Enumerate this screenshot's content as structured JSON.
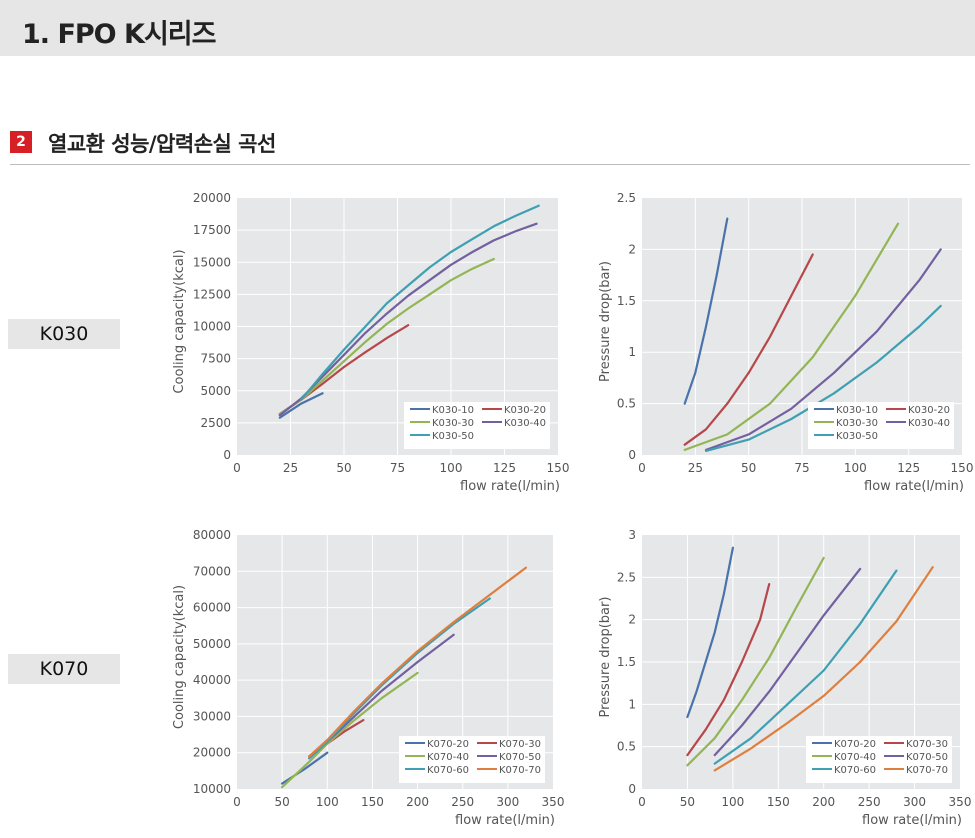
{
  "header": {
    "title": "1. FPO K시리즈"
  },
  "section": {
    "number": "2",
    "title": "열교환 성능/압력손실 곡선"
  },
  "rows": [
    {
      "label": "K030"
    },
    {
      "label": "K070"
    }
  ],
  "colors": {
    "blue": "#4a73ab",
    "red": "#b6474a",
    "green": "#93b555",
    "purple": "#7260a0",
    "teal": "#3f9fb3",
    "orange": "#de7f3f",
    "plot_bg": "#e6e7e8",
    "grid": "#ffffff"
  },
  "chart_data": [
    {
      "id": "k030-cooling",
      "type": "line",
      "ylabel": "Cooling capacity(kcal)",
      "xlabel": "flow rate(l/min)",
      "xlim": [
        0,
        150
      ],
      "ylim": [
        0,
        20000
      ],
      "xticks": [
        0,
        25,
        50,
        75,
        100,
        125,
        150
      ],
      "yticks": [
        0,
        2500,
        5000,
        7500,
        10000,
        12500,
        15000,
        17500,
        20000
      ],
      "grid": true,
      "legend_position": "bottom-right",
      "series": [
        {
          "name": "K030-10",
          "color": "#4a73ab",
          "points": [
            [
              20,
              2900
            ],
            [
              30,
              4000
            ],
            [
              40,
              4800
            ]
          ]
        },
        {
          "name": "K030-20",
          "color": "#b6474a",
          "points": [
            [
              20,
              3200
            ],
            [
              30,
              4300
            ],
            [
              40,
              5550
            ],
            [
              50,
              6850
            ],
            [
              60,
              8000
            ],
            [
              70,
              9100
            ],
            [
              80,
              10100
            ]
          ]
        },
        {
          "name": "K030-30",
          "color": "#93b555",
          "points": [
            [
              20,
              3200
            ],
            [
              30,
              4300
            ],
            [
              40,
              5800
            ],
            [
              50,
              7300
            ],
            [
              60,
              8800
            ],
            [
              70,
              10200
            ],
            [
              80,
              11400
            ],
            [
              90,
              12500
            ],
            [
              100,
              13600
            ],
            [
              110,
              14500
            ],
            [
              120,
              15250
            ]
          ]
        },
        {
          "name": "K030-40",
          "color": "#7260a0",
          "points": [
            [
              20,
              3100
            ],
            [
              30,
              4400
            ],
            [
              40,
              6100
            ],
            [
              50,
              7800
            ],
            [
              60,
              9500
            ],
            [
              70,
              11000
            ],
            [
              80,
              12400
            ],
            [
              90,
              13600
            ],
            [
              100,
              14800
            ],
            [
              110,
              15800
            ],
            [
              120,
              16700
            ],
            [
              130,
              17400
            ],
            [
              140,
              18000
            ]
          ]
        },
        {
          "name": "K030-50",
          "color": "#3f9fb3",
          "points": [
            [
              30,
              4300
            ],
            [
              40,
              6300
            ],
            [
              50,
              8200
            ],
            [
              60,
              10000
            ],
            [
              70,
              11800
            ],
            [
              80,
              13200
            ],
            [
              90,
              14600
            ],
            [
              100,
              15800
            ],
            [
              110,
              16800
            ],
            [
              120,
              17800
            ],
            [
              130,
              18600
            ],
            [
              141,
              19400
            ]
          ]
        }
      ]
    },
    {
      "id": "k030-pressure",
      "type": "line",
      "ylabel": "Pressure drop(bar)",
      "xlabel": "flow rate(l/min)",
      "xlim": [
        0,
        150
      ],
      "ylim": [
        0,
        2.5
      ],
      "xticks": [
        0,
        25,
        50,
        75,
        100,
        125,
        150
      ],
      "yticks": [
        0,
        0.5,
        1,
        1.5,
        2,
        2.5
      ],
      "grid": true,
      "legend_position": "bottom-right",
      "series": [
        {
          "name": "K030-10",
          "color": "#4a73ab",
          "points": [
            [
              20,
              0.5
            ],
            [
              25,
              0.8
            ],
            [
              30,
              1.25
            ],
            [
              35,
              1.75
            ],
            [
              40,
              2.3
            ]
          ]
        },
        {
          "name": "K030-20",
          "color": "#b6474a",
          "points": [
            [
              20,
              0.1
            ],
            [
              30,
              0.25
            ],
            [
              40,
              0.5
            ],
            [
              50,
              0.8
            ],
            [
              60,
              1.15
            ],
            [
              70,
              1.55
            ],
            [
              80,
              1.95
            ]
          ]
        },
        {
          "name": "K030-30",
          "color": "#93b555",
          "points": [
            [
              20,
              0.05
            ],
            [
              40,
              0.2
            ],
            [
              60,
              0.5
            ],
            [
              80,
              0.95
            ],
            [
              100,
              1.55
            ],
            [
              120,
              2.25
            ]
          ]
        },
        {
          "name": "K030-40",
          "color": "#7260a0",
          "points": [
            [
              30,
              0.05
            ],
            [
              50,
              0.2
            ],
            [
              70,
              0.45
            ],
            [
              90,
              0.8
            ],
            [
              110,
              1.2
            ],
            [
              130,
              1.7
            ],
            [
              140,
              2.0
            ]
          ]
        },
        {
          "name": "K030-50",
          "color": "#3f9fb3",
          "points": [
            [
              30,
              0.04
            ],
            [
              50,
              0.15
            ],
            [
              70,
              0.35
            ],
            [
              90,
              0.6
            ],
            [
              110,
              0.9
            ],
            [
              130,
              1.25
            ],
            [
              140,
              1.45
            ]
          ]
        }
      ]
    },
    {
      "id": "k070-cooling",
      "type": "line",
      "ylabel": "Cooling capacity(kcal)",
      "xlabel": "flow rate(l/min)",
      "xlim": [
        0,
        350
      ],
      "ylim": [
        10000,
        80000
      ],
      "xticks": [
        0,
        50,
        100,
        150,
        200,
        250,
        300,
        350
      ],
      "yticks": [
        10000,
        20000,
        30000,
        40000,
        50000,
        60000,
        70000,
        80000
      ],
      "grid": true,
      "legend_position": "bottom-right",
      "series": [
        {
          "name": "K070-20",
          "color": "#4a73ab",
          "points": [
            [
              50,
              11500
            ],
            [
              75,
              15500
            ],
            [
              100,
              20000
            ]
          ]
        },
        {
          "name": "K070-30",
          "color": "#b6474a",
          "points": [
            [
              80,
              19000
            ],
            [
              100,
              22500
            ],
            [
              120,
              26000
            ],
            [
              140,
              29000
            ]
          ]
        },
        {
          "name": "K070-40",
          "color": "#93b555",
          "points": [
            [
              50,
              10500
            ],
            [
              80,
              17500
            ],
            [
              100,
              22500
            ],
            [
              130,
              29000
            ],
            [
              160,
              35000
            ],
            [
              200,
              42000
            ]
          ]
        },
        {
          "name": "K070-50",
          "color": "#7260a0",
          "points": [
            [
              80,
              18500
            ],
            [
              100,
              23000
            ],
            [
              130,
              30000
            ],
            [
              160,
              37000
            ],
            [
              200,
              45000
            ],
            [
              240,
              52500
            ]
          ]
        },
        {
          "name": "K070-60",
          "color": "#3f9fb3",
          "points": [
            [
              80,
              18500
            ],
            [
              100,
              23000
            ],
            [
              130,
              31000
            ],
            [
              160,
              38500
            ],
            [
              200,
              47500
            ],
            [
              240,
              55500
            ],
            [
              280,
              62500
            ]
          ]
        },
        {
          "name": "K070-70",
          "color": "#de7f3f",
          "points": [
            [
              80,
              19000
            ],
            [
              100,
              23500
            ],
            [
              130,
              31500
            ],
            [
              160,
              39000
            ],
            [
              200,
              48000
            ],
            [
              240,
              56000
            ],
            [
              280,
              63500
            ],
            [
              320,
              71000
            ]
          ]
        }
      ]
    },
    {
      "id": "k070-pressure",
      "type": "line",
      "ylabel": "Pressure drop(bar)",
      "xlabel": "flow rate(l/min)",
      "xlim": [
        0,
        350
      ],
      "ylim": [
        0,
        3
      ],
      "xticks": [
        0,
        50,
        100,
        150,
        200,
        250,
        300,
        350
      ],
      "yticks": [
        0,
        0.5,
        1,
        1.5,
        2,
        2.5,
        3
      ],
      "grid": true,
      "legend_position": "bottom-right",
      "series": [
        {
          "name": "K070-20",
          "color": "#4a73ab",
          "points": [
            [
              50,
              0.85
            ],
            [
              60,
              1.15
            ],
            [
              70,
              1.5
            ],
            [
              80,
              1.85
            ],
            [
              90,
              2.3
            ],
            [
              100,
              2.85
            ]
          ]
        },
        {
          "name": "K070-30",
          "color": "#b6474a",
          "points": [
            [
              50,
              0.4
            ],
            [
              70,
              0.7
            ],
            [
              90,
              1.05
            ],
            [
              110,
              1.5
            ],
            [
              130,
              2.0
            ],
            [
              140,
              2.42
            ]
          ]
        },
        {
          "name": "K070-40",
          "color": "#93b555",
          "points": [
            [
              50,
              0.28
            ],
            [
              80,
              0.6
            ],
            [
              110,
              1.05
            ],
            [
              140,
              1.55
            ],
            [
              170,
              2.15
            ],
            [
              200,
              2.73
            ]
          ]
        },
        {
          "name": "K070-50",
          "color": "#7260a0",
          "points": [
            [
              80,
              0.4
            ],
            [
              110,
              0.75
            ],
            [
              140,
              1.15
            ],
            [
              170,
              1.6
            ],
            [
              200,
              2.05
            ],
            [
              240,
              2.6
            ]
          ]
        },
        {
          "name": "K070-60",
          "color": "#3f9fb3",
          "points": [
            [
              80,
              0.3
            ],
            [
              120,
              0.6
            ],
            [
              160,
              1.0
            ],
            [
              200,
              1.4
            ],
            [
              240,
              1.95
            ],
            [
              280,
              2.58
            ]
          ]
        },
        {
          "name": "K070-70",
          "color": "#de7f3f",
          "points": [
            [
              80,
              0.22
            ],
            [
              120,
              0.48
            ],
            [
              160,
              0.78
            ],
            [
              200,
              1.1
            ],
            [
              240,
              1.5
            ],
            [
              280,
              1.98
            ],
            [
              320,
              2.62
            ]
          ]
        }
      ]
    }
  ]
}
